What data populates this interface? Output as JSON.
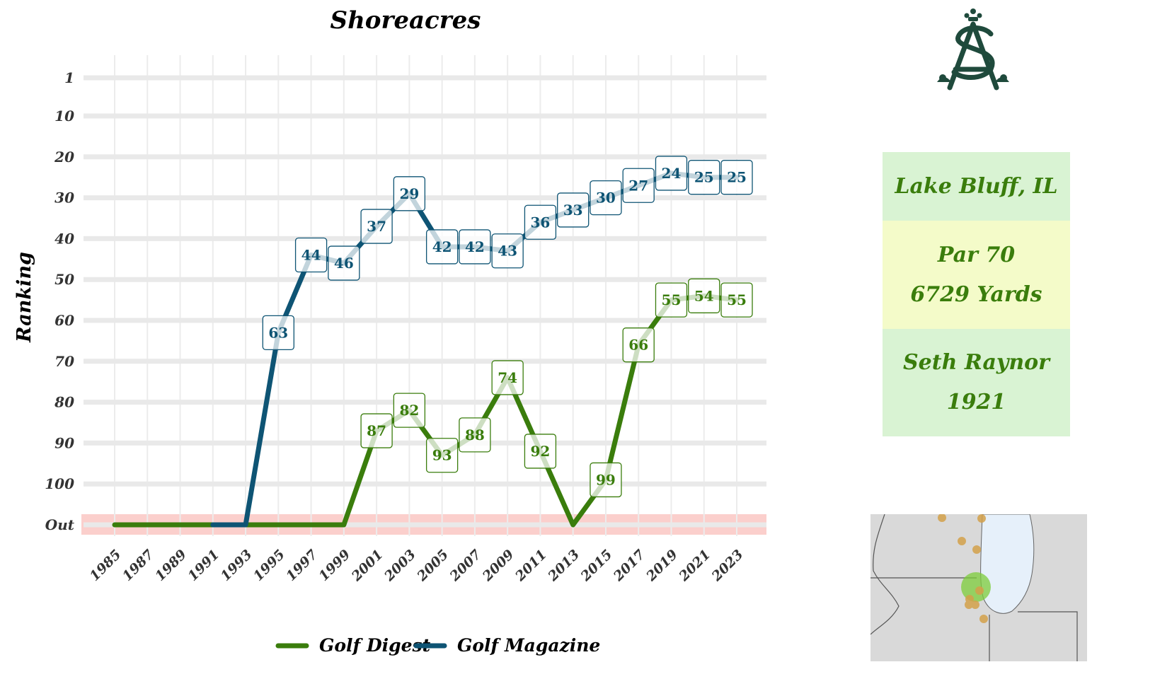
{
  "chart_data": {
    "type": "line",
    "title": "Shoreacres",
    "ylabel": "Ranking",
    "xlabel": "",
    "x": [
      1985,
      1987,
      1989,
      1991,
      1993,
      1995,
      1997,
      1999,
      2001,
      2003,
      2005,
      2007,
      2009,
      2011,
      2013,
      2015,
      2017,
      2019,
      2021,
      2023
    ],
    "x_tick_labels": [
      "1985",
      "1987",
      "1989",
      "1991",
      "1993",
      "1995",
      "1997",
      "1999",
      "2001",
      "2003",
      "2005",
      "2007",
      "2009",
      "2011",
      "2013",
      "2015",
      "2017",
      "2019",
      "2021",
      "2023"
    ],
    "y_tick_labels": [
      "1",
      "10",
      "20",
      "30",
      "40",
      "50",
      "60",
      "70",
      "80",
      "90",
      "100",
      "Out"
    ],
    "y_tick_values": [
      1,
      10,
      20,
      30,
      40,
      50,
      60,
      70,
      80,
      90,
      100,
      110
    ],
    "ylim": [
      110,
      1
    ],
    "y_reversed": true,
    "out_value": 110,
    "out_label": "Out",
    "out_band_color": "#fbcfcc",
    "grid": true,
    "legend_position": "bottom",
    "series": [
      {
        "name": "Golf Digest",
        "color": "#3a7d0c",
        "points": [
          [
            1985,
            110
          ],
          [
            1987,
            110
          ],
          [
            1989,
            110
          ],
          [
            1991,
            110
          ],
          [
            1993,
            110
          ],
          [
            1995,
            110
          ],
          [
            1997,
            110
          ],
          [
            1999,
            110
          ],
          [
            2001,
            87
          ],
          [
            2003,
            82
          ],
          [
            2005,
            93
          ],
          [
            2007,
            88
          ],
          [
            2009,
            74
          ],
          [
            2011,
            92
          ],
          [
            2013,
            110
          ],
          [
            2015,
            99
          ],
          [
            2017,
            66
          ],
          [
            2019,
            55
          ],
          [
            2021,
            54
          ],
          [
            2023,
            55
          ]
        ],
        "labels": [
          [
            2001,
            87
          ],
          [
            2003,
            82
          ],
          [
            2005,
            93
          ],
          [
            2007,
            88
          ],
          [
            2009,
            74
          ],
          [
            2011,
            92
          ],
          [
            2015,
            99
          ],
          [
            2017,
            66
          ],
          [
            2019,
            55
          ],
          [
            2021,
            54
          ],
          [
            2023,
            55
          ]
        ]
      },
      {
        "name": "Golf Magazine",
        "color": "#0e5474",
        "points": [
          [
            1991,
            110
          ],
          [
            1993,
            110
          ],
          [
            1995,
            63
          ],
          [
            1997,
            44
          ],
          [
            1999,
            46
          ],
          [
            2001,
            37
          ],
          [
            2003,
            29
          ],
          [
            2005,
            42
          ],
          [
            2007,
            42
          ],
          [
            2009,
            43
          ],
          [
            2011,
            36
          ],
          [
            2013,
            33
          ],
          [
            2015,
            30
          ],
          [
            2017,
            27
          ],
          [
            2019,
            24
          ],
          [
            2021,
            25
          ],
          [
            2023,
            25
          ]
        ],
        "labels": [
          [
            1995,
            63
          ],
          [
            1997,
            44
          ],
          [
            1999,
            46
          ],
          [
            2001,
            37
          ],
          [
            2003,
            29
          ],
          [
            2005,
            42
          ],
          [
            2007,
            42
          ],
          [
            2009,
            43
          ],
          [
            2011,
            36
          ],
          [
            2013,
            33
          ],
          [
            2015,
            30
          ],
          [
            2017,
            27
          ],
          [
            2019,
            24
          ],
          [
            2021,
            25
          ],
          [
            2023,
            25
          ]
        ]
      }
    ]
  },
  "info": {
    "location": "Lake Bluff, IL",
    "par": "Par 70",
    "yards": "6729 Yards",
    "architect": "Seth Raynor",
    "year": "1921"
  },
  "logo": {
    "icon": "shoreacres-monogram-logo",
    "color": "#1f4a3c"
  },
  "map": {
    "icon": "regional-location-map",
    "land_color": "#d9d9d9",
    "water_color": "#e6f0fa",
    "highlight_color": "#7ccc3a",
    "marker_color": "#d4a14a"
  }
}
